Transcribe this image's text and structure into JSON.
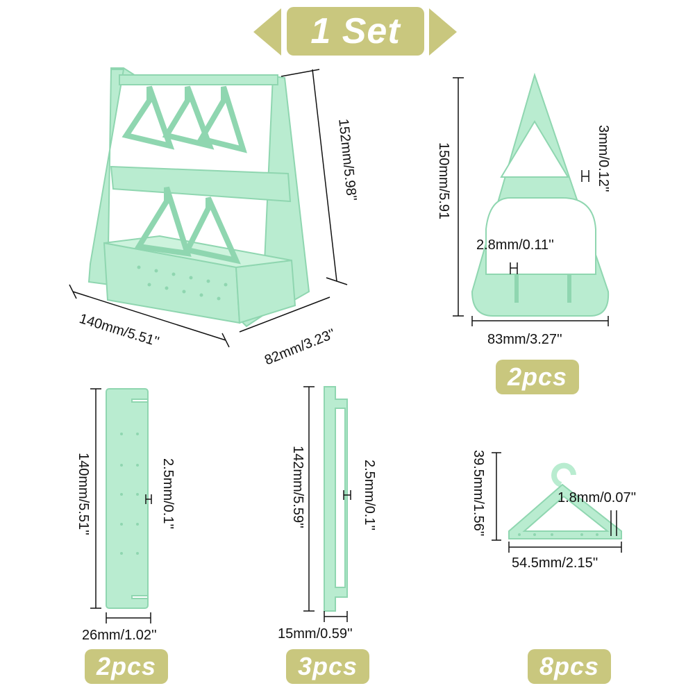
{
  "header": {
    "title": "1 Set"
  },
  "assembled": {
    "width_label": "140mm/5.51''",
    "depth_label": "82mm/3.23''",
    "height_label": "152mm/5.98''"
  },
  "side_panel": {
    "height_label": "150mm/5.91",
    "width_label": "83mm/3.27''",
    "slot_label": "3mm/0.12''",
    "hole_label": "2.8mm/0.11''",
    "count": "2pcs"
  },
  "base_board": {
    "height_label": "140mm/5.51''",
    "width_label": "26mm/1.02''",
    "hole_label": "2.5mm/0.1''",
    "count": "2pcs"
  },
  "rail": {
    "height_label": "142mm/5.59''",
    "width_label": "15mm/0.59''",
    "thickness_label": "2.5mm/0.1''",
    "count": "3pcs"
  },
  "hanger": {
    "height_label": "39.5mm/1.56''",
    "width_label": "54.5mm/2.15''",
    "thickness_label": "1.8mm/0.07''",
    "count": "8pcs"
  },
  "colors": {
    "badge": "#c9c77e",
    "part": "#b9ecd0",
    "part_edge": "#8fd6b0"
  }
}
